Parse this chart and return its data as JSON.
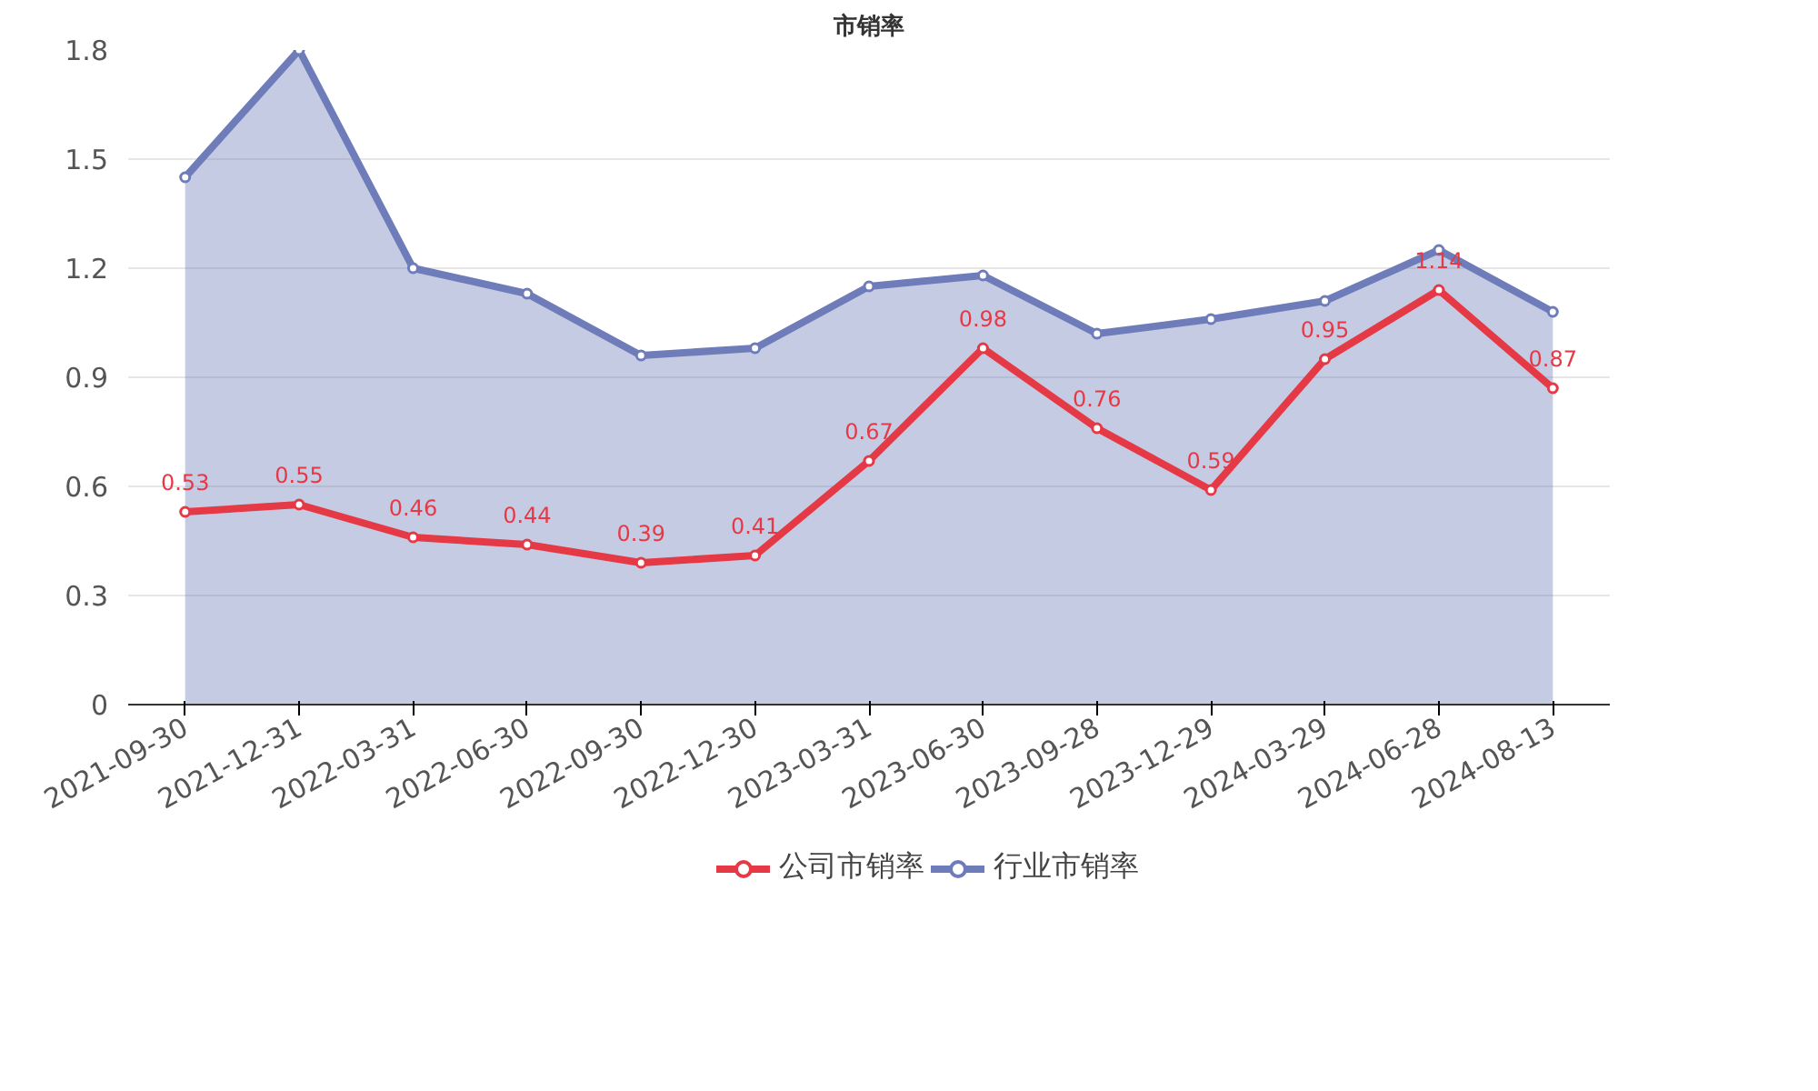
{
  "chart_data": {
    "type": "line",
    "title": "市销率",
    "categories": [
      "2021-09-30",
      "2021-12-31",
      "2022-03-31",
      "2022-06-30",
      "2022-09-30",
      "2022-12-30",
      "2023-03-31",
      "2023-06-30",
      "2023-09-28",
      "2023-12-29",
      "2024-03-29",
      "2024-06-28",
      "2024-08-13"
    ],
    "series": [
      {
        "name": "公司市销率",
        "color": "#e63946",
        "values": [
          0.53,
          0.55,
          0.46,
          0.44,
          0.39,
          0.41,
          0.67,
          0.98,
          0.76,
          0.59,
          0.95,
          1.14,
          0.87
        ],
        "value_labels": [
          "0.53",
          "0.55",
          "0.46",
          "0.44",
          "0.39",
          "0.41",
          "0.67",
          "0.98",
          "0.76",
          "0.59",
          "0.95",
          "1.14",
          "0.87"
        ]
      },
      {
        "name": "行业市销率",
        "color": "#6f7cba",
        "type": "area",
        "values": [
          1.45,
          1.8,
          1.2,
          1.13,
          0.96,
          0.98,
          1.15,
          1.18,
          1.02,
          1.06,
          1.11,
          1.25,
          1.08
        ]
      }
    ],
    "ylim": [
      0,
      1.8
    ],
    "yticks": [
      0,
      0.3,
      0.6,
      0.9,
      1.2,
      1.5,
      1.8
    ],
    "grid": "y",
    "legend": "bottom",
    "marker": "circle",
    "line_style": "solid"
  }
}
